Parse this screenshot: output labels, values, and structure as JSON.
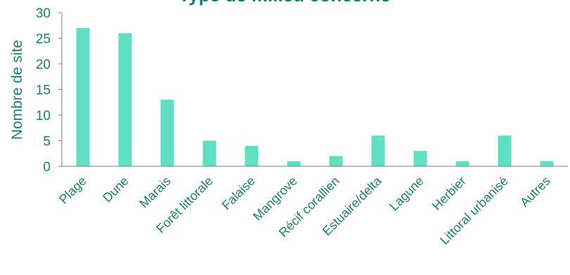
{
  "chart_data": {
    "type": "bar",
    "title": "Type de milieu concerné",
    "ylabel": "Nombre de site",
    "xlabel": "",
    "ylim": [
      0,
      30
    ],
    "yticks": [
      0,
      5,
      10,
      15,
      20,
      25,
      30
    ],
    "grid": false,
    "legend": "none",
    "bar_color": "#5fe0c2",
    "text_color": "#1a7f73",
    "categories": [
      "Plage",
      "Dune",
      "Marais",
      "Forêt littorale",
      "Falaise",
      "Mangrove",
      "Récif corallien",
      "Estuaire/delta",
      "Lagune",
      "Herbier",
      "Littoral urbanisé",
      "Autres"
    ],
    "values": [
      27,
      26,
      13,
      5,
      4,
      1,
      2,
      6,
      3,
      1,
      6,
      1
    ]
  }
}
